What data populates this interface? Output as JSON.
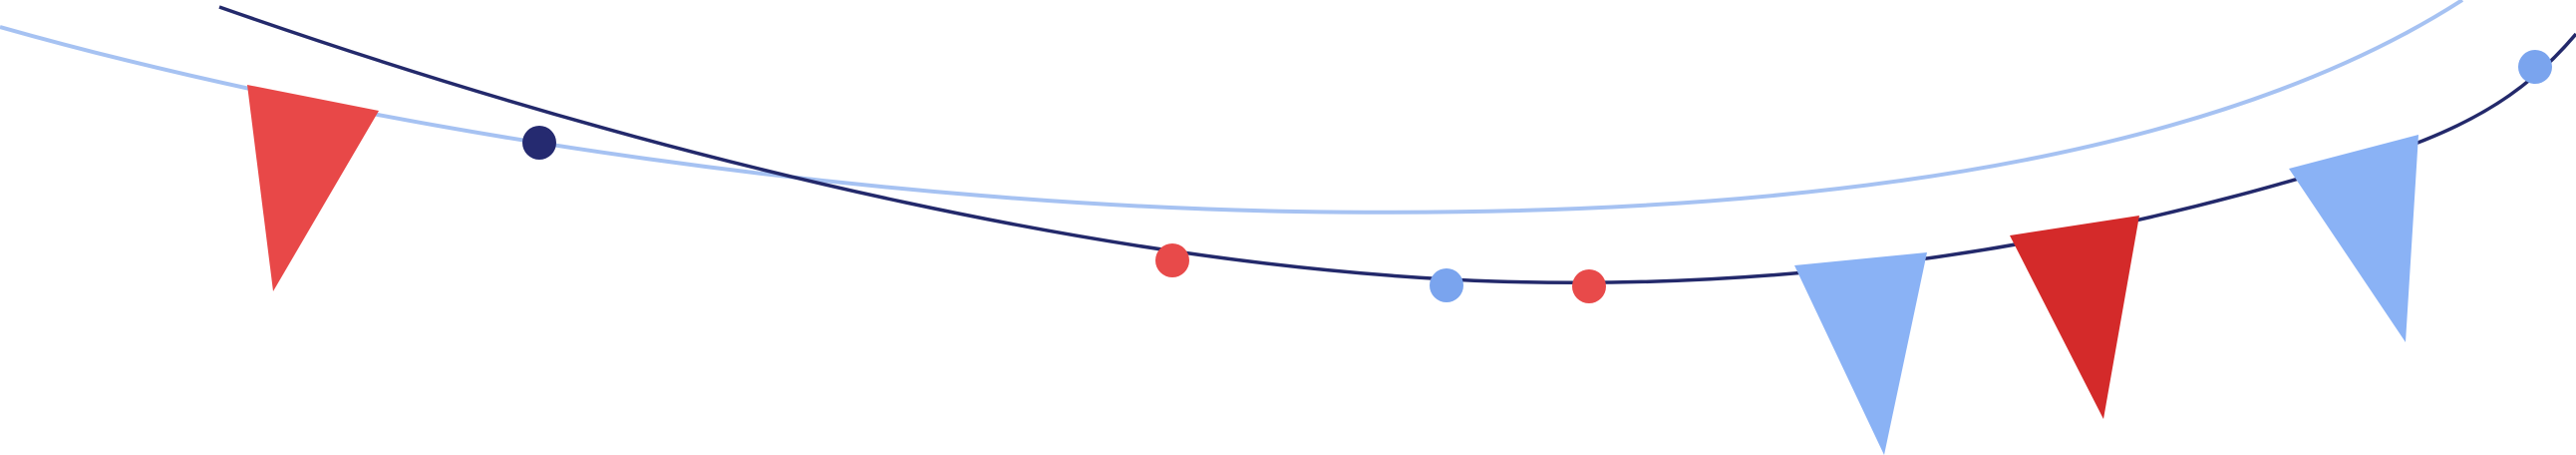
{
  "colors": {
    "background": "#ffffff",
    "navy_string": "#23296b",
    "light_string": "#a6c2f2",
    "red_flag": "#e84848",
    "dark_red_flag": "#d42a2a",
    "blue_flag": "#8ab2f5",
    "red_bead": "#e84a4a",
    "blue_bead": "#7aa4ee",
    "navy_bead": "#252a70"
  },
  "scene": {
    "strings": [
      {
        "name": "light-blue-bunting-string",
        "color_key": "light_string"
      },
      {
        "name": "navy-bunting-string",
        "color_key": "navy_string"
      }
    ],
    "flags": [
      {
        "name": "red-pennant-flag",
        "color_key": "red_flag"
      },
      {
        "name": "light-blue-pennant-flag",
        "color_key": "blue_flag"
      },
      {
        "name": "dark-red-pennant-flag",
        "color_key": "dark_red_flag"
      },
      {
        "name": "light-blue-pennant-flag",
        "color_key": "blue_flag"
      }
    ],
    "beads": [
      {
        "name": "navy-bead",
        "color_key": "navy_bead"
      },
      {
        "name": "red-bead",
        "color_key": "red_bead"
      },
      {
        "name": "light-blue-bead",
        "color_key": "blue_bead"
      },
      {
        "name": "red-bead",
        "color_key": "red_bead"
      },
      {
        "name": "light-blue-bead",
        "color_key": "blue_bead"
      }
    ]
  }
}
